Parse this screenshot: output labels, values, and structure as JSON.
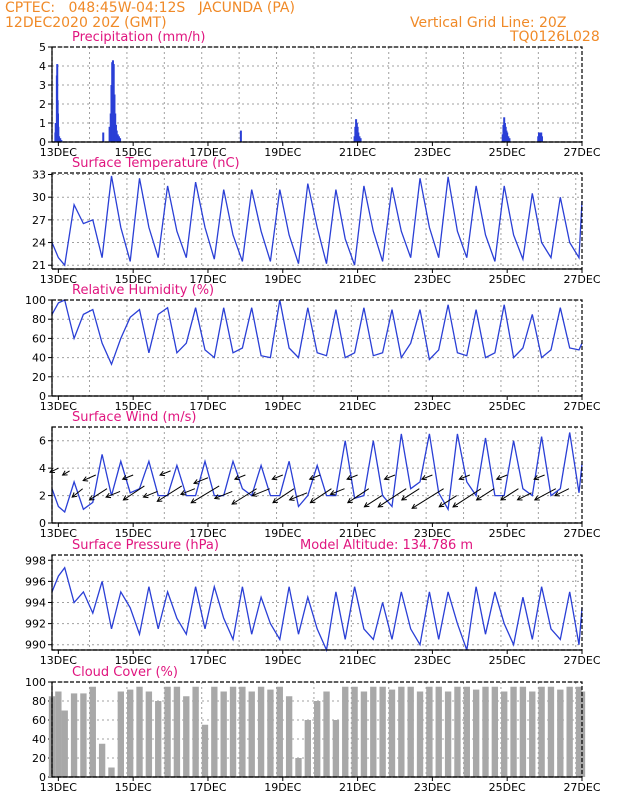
{
  "header": {
    "line1": "CPTEC:   048:45W-04:12S   JACUNDA (PA)",
    "line2": "12DEC2020 20Z (GMT)",
    "grid_note": "Vertical Grid Line: 20Z",
    "code": "TQ0126L028",
    "model_altitude": "Model Altitude: 134.786 m"
  },
  "colors": {
    "header": "#f08a28",
    "title": "#e0157f",
    "series": "#2a3fd6",
    "cloud": "#a8a8a8",
    "grid": "#a0a0a0"
  },
  "chart_data": [
    {
      "type": "bar",
      "title": "Precipitation (mm/h)",
      "x_unit": "day-of-December (fractional, starting 12DEC 20Z)",
      "xlim": [
        12.83,
        27.0
      ],
      "xticks": [
        "13DEC",
        "15DEC",
        "17DEC",
        "19DEC",
        "21DEC",
        "23DEC",
        "25DEC",
        "27DEC"
      ],
      "ylim": [
        0,
        5
      ],
      "yticks": [
        0,
        1,
        2,
        3,
        4,
        5
      ],
      "x": [
        12.92,
        12.93,
        12.96,
        12.97,
        12.98,
        12.99,
        13.0,
        13.02,
        13.05,
        13.08,
        14.2,
        14.37,
        14.4,
        14.42,
        14.44,
        14.46,
        14.48,
        14.5,
        14.52,
        14.54,
        14.56,
        14.59,
        14.62,
        14.65,
        17.88,
        20.92,
        20.94,
        20.96,
        20.98,
        21.0,
        21.02,
        21.05,
        21.08,
        24.88,
        24.9,
        24.92,
        24.94,
        24.96,
        24.98,
        25.0,
        25.03,
        25.06,
        25.83,
        25.85,
        25.87,
        25.89,
        25.91,
        25.93
      ],
      "values": [
        0.5,
        1.0,
        3.5,
        4.1,
        2.2,
        1.5,
        0.8,
        0.3,
        0.2,
        0.1,
        0.5,
        0.8,
        1.5,
        3.0,
        4.2,
        4.3,
        4.1,
        2.5,
        1.5,
        0.9,
        0.6,
        0.4,
        0.3,
        0.2,
        0.6,
        0.3,
        0.8,
        1.2,
        1.0,
        0.8,
        0.5,
        0.3,
        0.2,
        0.4,
        0.9,
        1.3,
        1.0,
        0.8,
        0.6,
        0.5,
        0.3,
        0.2,
        0.3,
        0.5,
        0.5,
        0.5,
        0.5,
        0.3
      ]
    },
    {
      "type": "line",
      "title": "Surface Temperature (nC)",
      "xlim": [
        12.83,
        27.0
      ],
      "xticks": [
        "13DEC",
        "15DEC",
        "17DEC",
        "19DEC",
        "21DEC",
        "23DEC",
        "25DEC",
        "27DEC"
      ],
      "ylim": [
        20.5,
        33.2
      ],
      "yticks": [
        21,
        24,
        27,
        30,
        33
      ],
      "x": [
        12.83,
        13.0,
        13.17,
        13.42,
        13.67,
        13.92,
        14.17,
        14.42,
        14.67,
        14.92,
        15.17,
        15.42,
        15.67,
        15.92,
        16.17,
        16.42,
        16.67,
        16.92,
        17.17,
        17.42,
        17.67,
        17.92,
        18.17,
        18.42,
        18.67,
        18.92,
        19.17,
        19.42,
        19.67,
        19.92,
        20.17,
        20.42,
        20.67,
        20.92,
        21.17,
        21.42,
        21.67,
        21.92,
        22.17,
        22.42,
        22.67,
        22.92,
        23.17,
        23.42,
        23.67,
        23.92,
        24.17,
        24.42,
        24.67,
        24.92,
        25.17,
        25.42,
        25.67,
        25.92,
        26.17,
        26.42,
        26.67,
        26.92,
        27.0
      ],
      "values": [
        24.0,
        22.0,
        21.0,
        29.0,
        26.5,
        27.0,
        22.0,
        32.8,
        26.0,
        21.5,
        32.5,
        26.0,
        22.0,
        31.5,
        25.5,
        22.0,
        32.0,
        26.0,
        21.8,
        31.0,
        25.0,
        21.5,
        31.0,
        25.5,
        21.5,
        31.0,
        25.0,
        21.2,
        31.8,
        26.0,
        21.2,
        31.0,
        24.5,
        21.0,
        31.5,
        25.5,
        21.5,
        31.3,
        25.5,
        22.0,
        32.5,
        26.0,
        22.0,
        32.7,
        25.5,
        22.0,
        31.5,
        25.0,
        21.5,
        31.5,
        25.0,
        21.8,
        30.5,
        24.0,
        22.0,
        30.0,
        24.0,
        22.0,
        29.5
      ]
    },
    {
      "type": "line",
      "title": "Relative Humidity (%)",
      "xlim": [
        12.83,
        27.0
      ],
      "xticks": [
        "13DEC",
        "15DEC",
        "17DEC",
        "19DEC",
        "21DEC",
        "23DEC",
        "25DEC",
        "27DEC"
      ],
      "ylim": [
        0,
        100
      ],
      "yticks": [
        0,
        20,
        40,
        60,
        80,
        100
      ],
      "x": [
        12.83,
        13.0,
        13.17,
        13.42,
        13.67,
        13.92,
        14.17,
        14.42,
        14.67,
        14.92,
        15.17,
        15.42,
        15.67,
        15.92,
        16.17,
        16.42,
        16.67,
        16.92,
        17.17,
        17.42,
        17.67,
        17.92,
        18.17,
        18.42,
        18.67,
        18.92,
        19.17,
        19.42,
        19.67,
        19.92,
        20.17,
        20.42,
        20.67,
        20.92,
        21.17,
        21.42,
        21.67,
        21.92,
        22.17,
        22.42,
        22.67,
        22.92,
        23.17,
        23.42,
        23.67,
        23.92,
        24.17,
        24.42,
        24.67,
        24.92,
        25.17,
        25.42,
        25.67,
        25.92,
        26.17,
        26.42,
        26.67,
        26.92,
        27.0
      ],
      "values": [
        85,
        97,
        100,
        60,
        85,
        90,
        55,
        33,
        60,
        82,
        90,
        45,
        85,
        92,
        45,
        55,
        92,
        48,
        40,
        92,
        45,
        50,
        92,
        42,
        40,
        100,
        50,
        40,
        92,
        45,
        42,
        90,
        40,
        45,
        92,
        42,
        45,
        90,
        40,
        55,
        90,
        38,
        48,
        95,
        45,
        42,
        90,
        40,
        45,
        95,
        40,
        50,
        85,
        40,
        48,
        92,
        50,
        48,
        55
      ]
    },
    {
      "type": "line",
      "title": "Surface Wind (m/s)",
      "xlim": [
        12.83,
        27.0
      ],
      "xticks": [
        "13DEC",
        "15DEC",
        "17DEC",
        "19DEC",
        "21DEC",
        "23DEC",
        "25DEC",
        "27DEC"
      ],
      "ylim": [
        0,
        7
      ],
      "yticks": [
        0,
        2,
        4,
        6
      ],
      "x": [
        12.83,
        13.0,
        13.17,
        13.42,
        13.67,
        13.92,
        14.17,
        14.42,
        14.67,
        14.92,
        15.17,
        15.42,
        15.67,
        15.92,
        16.17,
        16.42,
        16.67,
        16.92,
        17.17,
        17.42,
        17.67,
        17.92,
        18.17,
        18.42,
        18.67,
        18.92,
        19.17,
        19.42,
        19.67,
        19.92,
        20.17,
        20.42,
        20.67,
        20.92,
        21.17,
        21.42,
        21.67,
        21.92,
        22.17,
        22.42,
        22.67,
        22.92,
        23.17,
        23.42,
        23.67,
        23.92,
        24.17,
        24.42,
        24.67,
        24.92,
        25.17,
        25.42,
        25.67,
        25.92,
        26.17,
        26.42,
        26.67,
        26.92,
        27.0
      ],
      "values": [
        2.5,
        1.2,
        0.8,
        3.0,
        1.0,
        1.5,
        5.0,
        2.0,
        4.5,
        2.2,
        2.5,
        4.5,
        2.0,
        2.0,
        4.2,
        2.0,
        2.0,
        4.5,
        2.0,
        2.0,
        4.5,
        2.5,
        2.0,
        4.2,
        2.0,
        2.0,
        4.5,
        1.2,
        2.0,
        4.2,
        2.0,
        2.0,
        6.0,
        1.8,
        2.0,
        6.0,
        2.0,
        1.2,
        6.5,
        2.5,
        3.0,
        6.5,
        2.2,
        1.0,
        6.5,
        3.0,
        2.0,
        6.2,
        2.0,
        2.0,
        6.0,
        2.5,
        2.0,
        6.3,
        2.0,
        2.5,
        6.6,
        2.2,
        4.3
      ],
      "arrows": {
        "x": [
          13.0,
          13.3,
          13.65,
          14.0,
          14.3,
          14.65,
          15.0,
          15.3,
          15.65,
          16.0,
          16.3,
          16.65,
          17.0,
          17.3,
          17.65,
          18.0,
          18.3,
          18.65,
          19.0,
          19.3,
          19.65,
          20.0,
          20.3,
          20.65,
          21.0,
          21.3,
          21.65,
          22.0,
          22.3,
          22.65,
          23.0,
          23.3,
          23.65,
          24.0,
          24.3,
          24.65,
          25.0,
          25.3,
          25.65,
          26.0,
          26.3,
          26.65
        ],
        "u": [
          -1.2,
          -1.0,
          -1.5,
          -1.8,
          -2.5,
          -2.0,
          -1.5,
          -3.0,
          -2.0,
          -1.5,
          -3.5,
          -2.0,
          -2.0,
          -4.0,
          -2.5,
          -1.5,
          -3.5,
          -2.5,
          -1.5,
          -3.0,
          -2.5,
          -1.5,
          -3.0,
          -2.0,
          -1.5,
          -3.0,
          -2.5,
          -1.5,
          -4.0,
          -2.5,
          -1.5,
          -4.5,
          -2.5,
          -1.5,
          -4.0,
          -2.5,
          -1.5,
          -2.5,
          -2.0,
          -1.5,
          -3.0,
          -2.0
        ],
        "v": [
          -0.6,
          -0.6,
          -1.2,
          -0.8,
          -1.6,
          -0.8,
          -0.6,
          -2.0,
          -0.8,
          -0.6,
          -2.2,
          -0.8,
          -0.8,
          -2.4,
          -1.0,
          -0.6,
          -2.2,
          -1.0,
          -0.6,
          -2.0,
          -1.0,
          -0.6,
          -2.0,
          -0.8,
          -0.6,
          -2.0,
          -1.6,
          -0.6,
          -2.6,
          -1.6,
          -0.6,
          -2.8,
          -1.6,
          -0.6,
          -2.6,
          -1.6,
          -0.6,
          -1.6,
          -1.0,
          -0.6,
          -1.6,
          -1.0
        ],
        "speed": [
          4.0,
          3.8,
          2.5,
          3.5,
          2.5,
          2.3,
          3.5,
          2.7,
          2.3,
          3.8,
          2.7,
          2.5,
          3.3,
          2.7,
          2.3,
          3.5,
          2.5,
          2.5,
          3.5,
          2.5,
          2.2,
          3.5,
          2.5,
          2.5,
          3.5,
          2.5,
          2.0,
          3.5,
          2.5,
          2.5,
          3.5,
          2.5,
          2.0,
          3.5,
          2.5,
          2.5,
          3.5,
          2.5,
          2.2,
          3.5,
          2.5,
          2.5
        ]
      }
    },
    {
      "type": "line",
      "title": "Surface Pressure (hPa)",
      "xlim": [
        12.83,
        27.0
      ],
      "xticks": [
        "13DEC",
        "15DEC",
        "17DEC",
        "19DEC",
        "21DEC",
        "23DEC",
        "25DEC",
        "27DEC"
      ],
      "ylim": [
        989.5,
        998.5
      ],
      "yticks": [
        990,
        992,
        994,
        996,
        998
      ],
      "x": [
        12.83,
        13.0,
        13.17,
        13.42,
        13.67,
        13.92,
        14.17,
        14.42,
        14.67,
        14.92,
        15.17,
        15.42,
        15.67,
        15.92,
        16.17,
        16.42,
        16.67,
        16.92,
        17.17,
        17.42,
        17.67,
        17.92,
        18.17,
        18.42,
        18.67,
        18.92,
        19.17,
        19.42,
        19.67,
        19.92,
        20.17,
        20.42,
        20.67,
        20.92,
        21.17,
        21.42,
        21.67,
        21.92,
        22.17,
        22.42,
        22.67,
        22.92,
        23.17,
        23.42,
        23.67,
        23.92,
        24.17,
        24.42,
        24.67,
        24.92,
        25.17,
        25.42,
        25.67,
        25.92,
        26.17,
        26.42,
        26.67,
        26.92,
        27.0
      ],
      "values": [
        995.0,
        996.5,
        997.3,
        994.0,
        995.0,
        993.0,
        996.0,
        991.5,
        995.0,
        993.5,
        991.0,
        995.5,
        991.5,
        995.0,
        992.5,
        991.0,
        995.5,
        991.5,
        995.5,
        992.5,
        990.5,
        995.5,
        991.0,
        994.5,
        992.0,
        990.5,
        995.5,
        991.0,
        994.5,
        991.5,
        989.5,
        995.0,
        990.5,
        995.5,
        991.5,
        990.5,
        994.0,
        990.5,
        995.0,
        991.5,
        990.0,
        995.0,
        990.5,
        995.0,
        992.0,
        989.5,
        995.5,
        991.0,
        995.0,
        992.0,
        990.0,
        994.5,
        990.5,
        995.5,
        991.5,
        990.5,
        995.0,
        990.0,
        993.5
      ]
    },
    {
      "type": "bar",
      "title": "Cloud Cover (%)",
      "xlim": [
        12.83,
        27.0
      ],
      "xticks": [
        "13DEC",
        "15DEC",
        "17DEC",
        "19DEC",
        "21DEC",
        "23DEC",
        "25DEC",
        "27DEC"
      ],
      "ylim": [
        0,
        100
      ],
      "yticks": [
        0,
        20,
        40,
        60,
        80,
        100
      ],
      "x": [
        12.83,
        13.0,
        13.17,
        13.42,
        13.67,
        13.92,
        14.17,
        14.42,
        14.67,
        14.92,
        15.17,
        15.42,
        15.67,
        15.92,
        16.17,
        16.42,
        16.67,
        16.92,
        17.17,
        17.42,
        17.67,
        17.92,
        18.17,
        18.42,
        18.67,
        18.92,
        19.17,
        19.42,
        19.67,
        19.92,
        20.17,
        20.42,
        20.67,
        20.92,
        21.17,
        21.42,
        21.67,
        21.92,
        22.17,
        22.42,
        22.67,
        22.92,
        23.17,
        23.42,
        23.67,
        23.92,
        24.17,
        24.42,
        24.67,
        24.92,
        25.17,
        25.42,
        25.67,
        25.92,
        26.17,
        26.42,
        26.67,
        26.92,
        27.0
      ],
      "values": [
        85,
        90,
        70,
        88,
        88,
        95,
        35,
        10,
        90,
        92,
        95,
        90,
        80,
        95,
        95,
        85,
        95,
        55,
        95,
        90,
        95,
        95,
        90,
        95,
        92,
        95,
        85,
        20,
        60,
        80,
        90,
        60,
        95,
        95,
        90,
        95,
        95,
        92,
        95,
        95,
        90,
        95,
        95,
        90,
        95,
        95,
        92,
        95,
        95,
        90,
        95,
        95,
        90,
        95,
        95,
        92,
        95,
        95,
        90
      ]
    }
  ]
}
